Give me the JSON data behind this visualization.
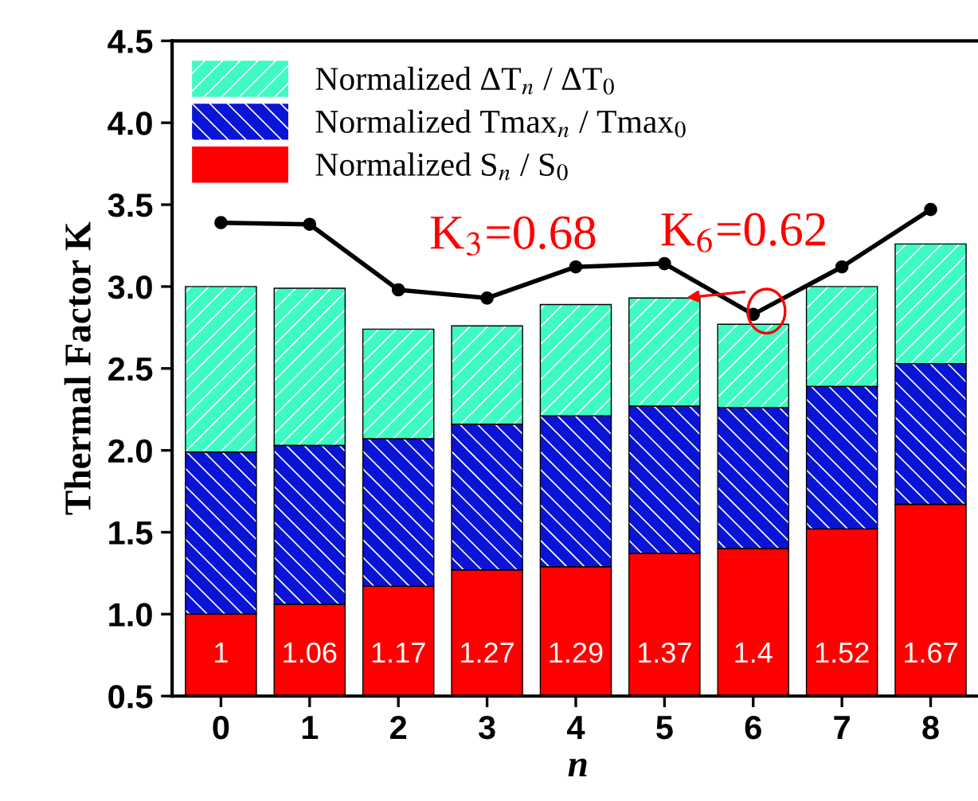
{
  "chart_data": {
    "type": "bar",
    "stacked": true,
    "xlabel": "n",
    "ylabel": "Thermal Factor K",
    "x": [
      0,
      1,
      2,
      3,
      4,
      5,
      6,
      7,
      8
    ],
    "xlim": [
      -0.55,
      8.6
    ],
    "xticks": [
      0,
      1,
      2,
      3,
      4,
      5,
      6,
      7,
      8
    ],
    "ylim": [
      0.5,
      4.5
    ],
    "yticks": [
      "0.5",
      "1.0",
      "1.5",
      "2.0",
      "2.5",
      "3.0",
      "3.5",
      "4.0",
      "4.5"
    ],
    "series": [
      {
        "name": "Normalized S$_{n}$ / S$_{0}$",
        "color": "#ff0000",
        "values": [
          1,
          1.06,
          1.17,
          1.27,
          1.29,
          1.37,
          1.4,
          1.52,
          1.67
        ],
        "value_labels": [
          "1",
          "1.06",
          "1.17",
          "1.27",
          "1.29",
          "1.37",
          "1.4",
          "1.52",
          "1.67"
        ]
      },
      {
        "name": "Normalized Tmax$_{n}$ / Tmax$_{0}$",
        "color": "#0a14d6",
        "values": [
          0.99,
          0.97,
          0.9,
          0.89,
          0.92,
          0.9,
          0.86,
          0.87,
          0.86
        ]
      },
      {
        "name": "Normalized ΔT$_{n}$ / ΔT$_{0}$",
        "color": "#3dfbc2",
        "values": [
          1.01,
          0.96,
          0.67,
          0.6,
          0.68,
          0.66,
          0.51,
          0.61,
          0.73
        ]
      },
      {
        "type": "line",
        "color": "#000000",
        "marker": "circle",
        "values": [
          3.39,
          3.38,
          2.98,
          2.93,
          3.12,
          3.14,
          2.83,
          3.12,
          3.47
        ]
      }
    ],
    "legend": "top left",
    "grid": false,
    "annotations": [
      "K$_{3}$=0.68",
      {
        "text": "K$_{6}$=0.62",
        "x": 6,
        "y": 2.83
      }
    ]
  }
}
